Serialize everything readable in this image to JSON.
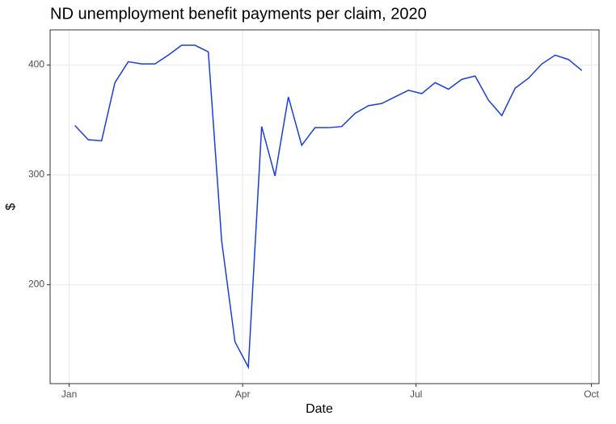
{
  "chart_data": {
    "type": "line",
    "title": "ND unemployment benefit payments per claim, 2020",
    "x_label": "Date",
    "y_label": "$",
    "x": [
      "2020-01-04",
      "2020-01-11",
      "2020-01-18",
      "2020-01-25",
      "2020-02-01",
      "2020-02-08",
      "2020-02-15",
      "2020-02-22",
      "2020-02-29",
      "2020-03-07",
      "2020-03-14",
      "2020-03-21",
      "2020-03-28",
      "2020-04-04",
      "2020-04-11",
      "2020-04-18",
      "2020-04-25",
      "2020-05-02",
      "2020-05-09",
      "2020-05-16",
      "2020-05-23",
      "2020-05-30",
      "2020-06-06",
      "2020-06-13",
      "2020-06-20",
      "2020-06-27",
      "2020-07-04",
      "2020-07-11",
      "2020-07-18",
      "2020-07-25",
      "2020-08-01",
      "2020-08-08",
      "2020-08-15",
      "2020-08-22",
      "2020-08-29",
      "2020-09-05",
      "2020-09-12",
      "2020-09-19",
      "2020-09-26"
    ],
    "series": [
      {
        "name": "payments per claim",
        "color": "#1a3fd6",
        "values": [
          345,
          332,
          331,
          384,
          403,
          401,
          401,
          409,
          418,
          418,
          412,
          240,
          148,
          125,
          344,
          299,
          371,
          327,
          343,
          343,
          344,
          356,
          363,
          365,
          371,
          377,
          374,
          384,
          378,
          387,
          390,
          368,
          354,
          379,
          388,
          401,
          409,
          405,
          395
        ]
      }
    ],
    "xlim": [
      "2019-12-22",
      "2020-10-05"
    ],
    "xticks": [
      {
        "value": "2020-01-01",
        "label": "Jan"
      },
      {
        "value": "2020-04-01",
        "label": "Apr"
      },
      {
        "value": "2020-07-01",
        "label": "Jul"
      },
      {
        "value": "2020-10-01",
        "label": "Oct"
      }
    ],
    "ylim": [
      110,
      432
    ],
    "yticks": [
      200,
      300,
      400
    ],
    "grid": true
  }
}
